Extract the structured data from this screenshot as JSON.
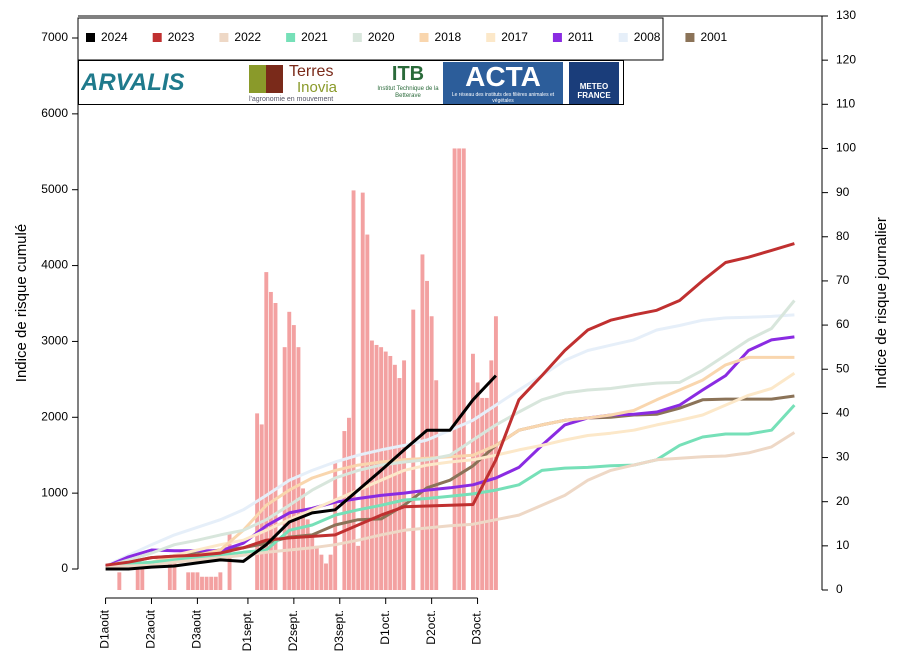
{
  "chart_data": {
    "type": "line",
    "y_label": "Indice de risque cumulé",
    "y2_label": "Indice de risque journalier",
    "logos": {
      "arvalis": "ARVALIS",
      "terres": "Terres",
      "inovia": "Inovia",
      "terres_sub": "l'agronomie en mouvement",
      "itb": "ITB",
      "itb_sub": "Institut Technique de la Betterave",
      "acta": "ACTA",
      "acta_sub": "Le réseau des instituts des filières animales et végétales",
      "meteo": "METEO FRANCE"
    },
    "xlim": [
      -6,
      156
    ],
    "xticks": [
      {
        "value": 0,
        "label": "D1août"
      },
      {
        "value": 10,
        "label": "D2août"
      },
      {
        "value": 20,
        "label": "D3août"
      },
      {
        "value": 31,
        "label": "D1sept."
      },
      {
        "value": 41,
        "label": "D2sept."
      },
      {
        "value": 51,
        "label": "D3sept."
      },
      {
        "value": 61,
        "label": "D1oct."
      },
      {
        "value": 71,
        "label": "D2oct."
      },
      {
        "value": 81,
        "label": "D3oct."
      }
    ],
    "ylim": [
      0,
      7000
    ],
    "yticks": [
      0,
      1000,
      2000,
      3000,
      4000,
      5000,
      6000,
      7000
    ],
    "y2lim": [
      0,
      130
    ],
    "y2ticks": [
      0,
      10,
      20,
      30,
      40,
      50,
      60,
      70,
      80,
      90,
      100,
      110,
      120,
      130
    ],
    "x": [
      0,
      5,
      10,
      15,
      20,
      25,
      30,
      35,
      40,
      45,
      50,
      55,
      60,
      65,
      70,
      75,
      80,
      85,
      90,
      95,
      100,
      105,
      110,
      115,
      120,
      125,
      130,
      135,
      140,
      145,
      150
    ],
    "bars": {
      "axis": "y2",
      "color": "#f08a8a",
      "x": [
        0,
        1,
        2,
        3,
        4,
        5,
        6,
        7,
        8,
        9,
        10,
        11,
        12,
        13,
        14,
        15,
        16,
        17,
        18,
        19,
        20,
        21,
        22,
        23,
        24,
        25,
        26,
        27,
        28,
        29,
        30,
        31,
        32,
        33,
        34,
        35,
        36,
        37,
        38,
        39,
        40,
        41,
        42,
        43,
        44,
        45,
        46,
        47,
        48,
        49,
        50,
        51,
        52,
        53,
        54,
        55,
        56,
        57,
        58,
        59,
        60,
        61,
        62,
        63,
        64,
        65,
        66,
        67,
        68,
        69,
        70,
        71,
        72,
        73,
        74,
        75,
        76,
        77,
        78,
        79,
        80,
        81,
        82,
        83,
        84,
        85
      ],
      "values": [
        0,
        0,
        0,
        4,
        0,
        0,
        0,
        6,
        6,
        0,
        0,
        0,
        0,
        0,
        7,
        7,
        0,
        0,
        4,
        4,
        4,
        3,
        3,
        3,
        3,
        4,
        0,
        13,
        0,
        0,
        0,
        0,
        0,
        40,
        37.5,
        72,
        67.5,
        65,
        0,
        55,
        63,
        60,
        55,
        23,
        16,
        12,
        10,
        8,
        6,
        8,
        29,
        0,
        36,
        39,
        90.5,
        10,
        90,
        80.5,
        56.5,
        55.5,
        55,
        54,
        53,
        51,
        48,
        52,
        0,
        63.5,
        0,
        76,
        70,
        62,
        47.5,
        0,
        0,
        0,
        100,
        100,
        100,
        0,
        53.5,
        47,
        43.5,
        43.5,
        52,
        62
      ]
    },
    "series": [
      {
        "name": "2024",
        "color": "#000000",
        "values": [
          0,
          0,
          25,
          40,
          80,
          120,
          100,
          320,
          620,
          740,
          780,
          1040,
          1300,
          1570,
          1830,
          1830,
          2230,
          2550,
          null,
          null,
          null,
          null,
          null,
          null,
          null,
          null,
          null,
          null,
          null,
          null,
          null
        ]
      },
      {
        "name": "2023",
        "color": "#c03030",
        "values": [
          50,
          90,
          150,
          170,
          180,
          210,
          280,
          380,
          410,
          430,
          450,
          580,
          710,
          820,
          830,
          840,
          850,
          1440,
          2230,
          2550,
          2880,
          3150,
          3280,
          3350,
          3410,
          3540,
          3800,
          4040,
          4110,
          4200,
          4290
        ]
      },
      {
        "name": "2022",
        "color": "#eed8c6",
        "values": [
          30,
          40,
          50,
          90,
          120,
          150,
          180,
          220,
          250,
          280,
          320,
          380,
          450,
          510,
          540,
          570,
          590,
          650,
          710,
          840,
          970,
          1170,
          1300,
          1370,
          1440,
          1460,
          1480,
          1490,
          1530,
          1610,
          1800
        ]
      },
      {
        "name": "2021",
        "color": "#76e0b8",
        "values": [
          40,
          70,
          90,
          120,
          150,
          180,
          220,
          250,
          510,
          580,
          710,
          780,
          840,
          910,
          930,
          960,
          990,
          1040,
          1110,
          1300,
          1330,
          1340,
          1360,
          1370,
          1440,
          1630,
          1740,
          1780,
          1780,
          1830,
          2160
        ]
      },
      {
        "name": "2020",
        "color": "#d8e6dc",
        "values": [
          30,
          120,
          210,
          320,
          380,
          450,
          510,
          650,
          840,
          1040,
          1200,
          1300,
          1370,
          1410,
          1440,
          1500,
          1700,
          1900,
          2070,
          2230,
          2320,
          2360,
          2380,
          2420,
          2450,
          2460,
          2620,
          2820,
          3020,
          3170,
          3540
        ]
      },
      {
        "name": "2018",
        "color": "#f9d6ae",
        "values": [
          30,
          50,
          90,
          150,
          180,
          250,
          510,
          840,
          1040,
          1200,
          1300,
          1370,
          1410,
          1440,
          1460,
          1480,
          1500,
          1630,
          1830,
          1900,
          1960,
          1990,
          2030,
          2090,
          2230,
          2360,
          2490,
          2690,
          2790,
          2790,
          2790
        ]
      },
      {
        "name": "2017",
        "color": "#fce8c9",
        "values": [
          30,
          50,
          90,
          180,
          250,
          320,
          380,
          510,
          650,
          780,
          910,
          1040,
          1170,
          1300,
          1370,
          1410,
          1440,
          1500,
          1570,
          1630,
          1700,
          1760,
          1790,
          1830,
          1900,
          1960,
          2030,
          2160,
          2290,
          2380,
          2580
        ]
      },
      {
        "name": "2011",
        "color": "#8a2be2",
        "values": [
          30,
          160,
          250,
          240,
          240,
          240,
          340,
          570,
          740,
          800,
          880,
          930,
          970,
          1000,
          1040,
          1070,
          1110,
          1200,
          1340,
          1630,
          1900,
          1990,
          2030,
          2040,
          2070,
          2160,
          2360,
          2550,
          2880,
          3020,
          3060
        ]
      },
      {
        "name": "2008",
        "color": "#e6eff9",
        "values": [
          40,
          180,
          320,
          450,
          550,
          650,
          780,
          970,
          1170,
          1300,
          1410,
          1500,
          1570,
          1630,
          1700,
          1830,
          1960,
          2160,
          2360,
          2550,
          2750,
          2880,
          2950,
          3020,
          3150,
          3210,
          3280,
          3310,
          3320,
          3330,
          3350
        ]
      },
      {
        "name": "2001",
        "color": "#8b7358",
        "values": [
          40,
          90,
          150,
          170,
          210,
          250,
          280,
          340,
          420,
          450,
          580,
          650,
          660,
          840,
          1070,
          1170,
          1360,
          1630,
          1830,
          1900,
          1960,
          1990,
          2000,
          2030,
          2040,
          2120,
          2230,
          2240,
          2240,
          2240,
          2280
        ]
      }
    ]
  }
}
